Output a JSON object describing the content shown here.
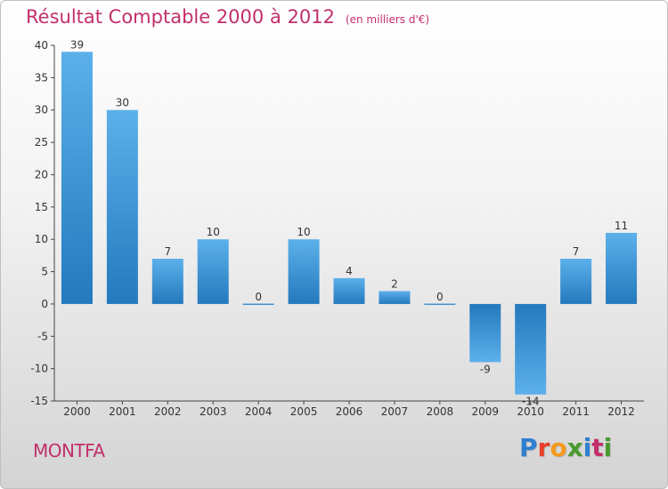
{
  "header": {
    "title": "Résultat Comptable 2000 à 2012",
    "subtitle": "(en milliers d'€)"
  },
  "footer": {
    "commune": "MONTFA",
    "logo_text": "Proxiti",
    "logo_colors": [
      "#2f7fd0",
      "#e8402a",
      "#f39a1e",
      "#4a9a2e",
      "#2f7fd0",
      "#c22f6b",
      "#4a9a2e"
    ]
  },
  "colors": {
    "accent": "#c22f6b",
    "bar_dark": "#2479bd",
    "bar_light": "#5cb0ea"
  },
  "chart_data": {
    "type": "bar",
    "categories": [
      "2000",
      "2001",
      "2002",
      "2003",
      "2004",
      "2005",
      "2006",
      "2007",
      "2008",
      "2009",
      "2010",
      "2011",
      "2012"
    ],
    "values": [
      39,
      30,
      7,
      10,
      0,
      10,
      4,
      2,
      0,
      -9,
      -14,
      7,
      11
    ],
    "title": "Résultat Comptable 2000 à 2012",
    "xlabel": "",
    "ylabel": "",
    "ylim": [
      -15,
      40
    ],
    "yticks": [
      40,
      35,
      30,
      25,
      20,
      15,
      10,
      5,
      0,
      -5,
      -10,
      -15
    ],
    "grid": false,
    "legend": "none"
  }
}
